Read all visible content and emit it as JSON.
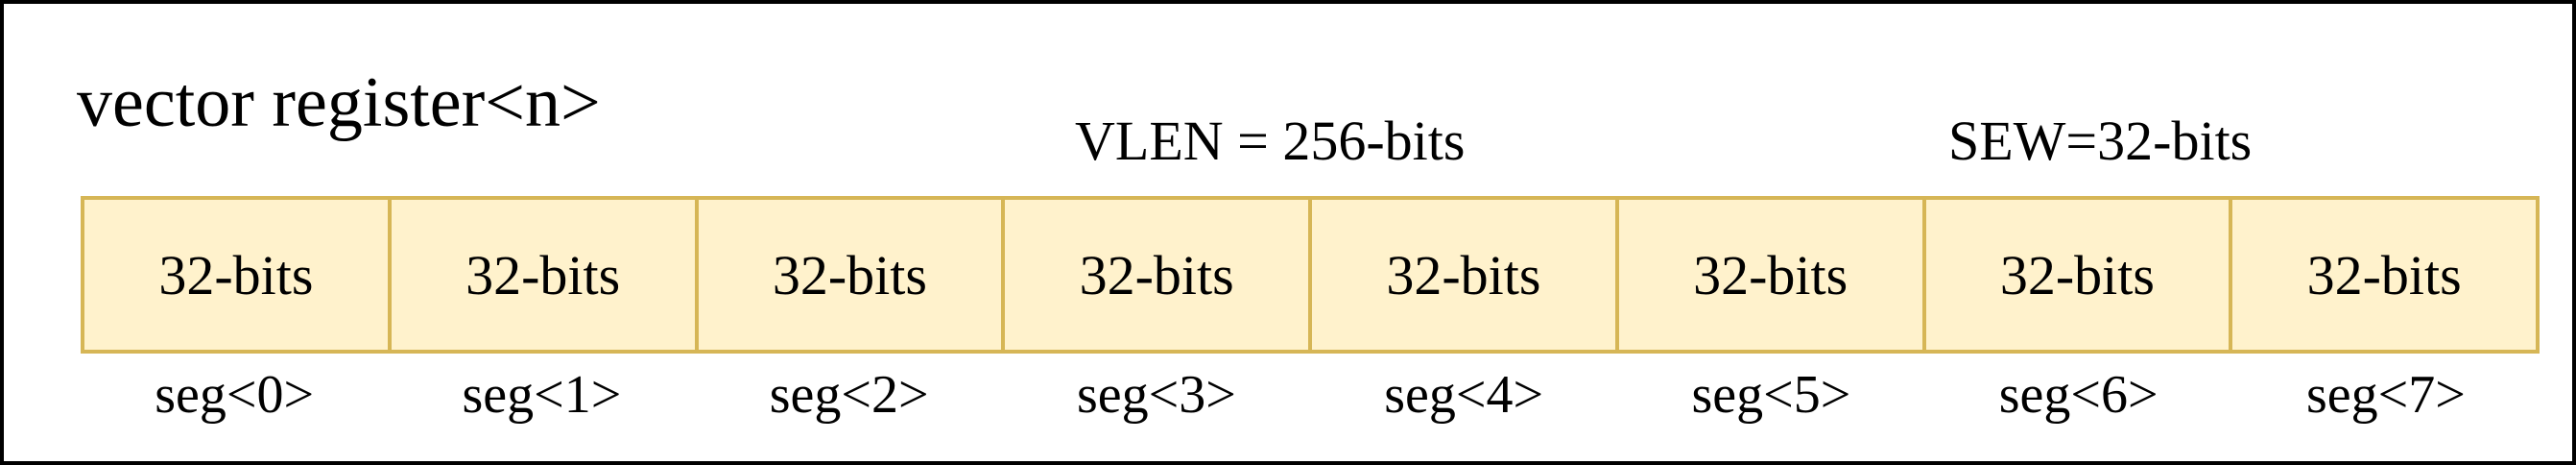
{
  "title": "vector register<n>",
  "vlen_label": "VLEN = 256-bits",
  "sew_label": "SEW=32-bits",
  "colors": {
    "cell_fill": "#fff2cc",
    "cell_border": "#d6b656",
    "frame_border": "#000000"
  },
  "elements": [
    {
      "width": "32-bits",
      "segment": "seg<0>"
    },
    {
      "width": "32-bits",
      "segment": "seg<1>"
    },
    {
      "width": "32-bits",
      "segment": "seg<2>"
    },
    {
      "width": "32-bits",
      "segment": "seg<3>"
    },
    {
      "width": "32-bits",
      "segment": "seg<4>"
    },
    {
      "width": "32-bits",
      "segment": "seg<5>"
    },
    {
      "width": "32-bits",
      "segment": "seg<6>"
    },
    {
      "width": "32-bits",
      "segment": "seg<7>"
    }
  ]
}
